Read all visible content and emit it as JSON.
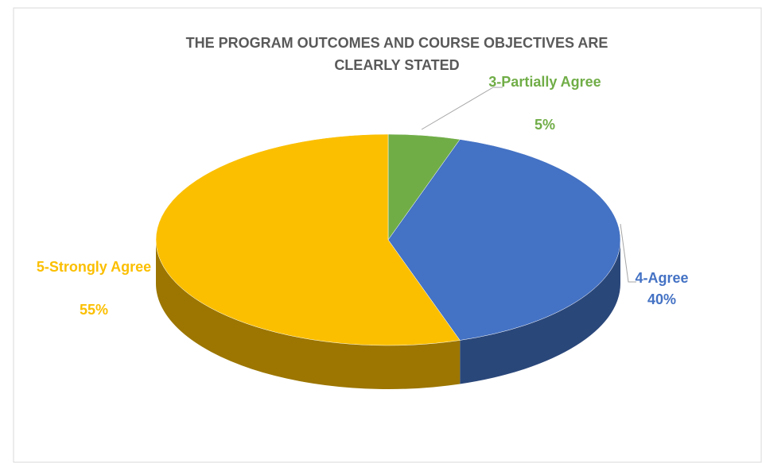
{
  "chart_data": {
    "type": "pie",
    "title": "THE PROGRAM OUTCOMES AND COURSE OBJECTIVES ARE CLEARLY STATED",
    "categories": [
      "3-Partially Agree",
      "4-Agree",
      "5-Strongly Agree"
    ],
    "values": [
      5,
      40,
      55
    ],
    "value_labels": [
      "5%",
      "40%",
      "55%"
    ],
    "colors": [
      "#70ad47",
      "#4472c4",
      "#fbbf00"
    ]
  }
}
